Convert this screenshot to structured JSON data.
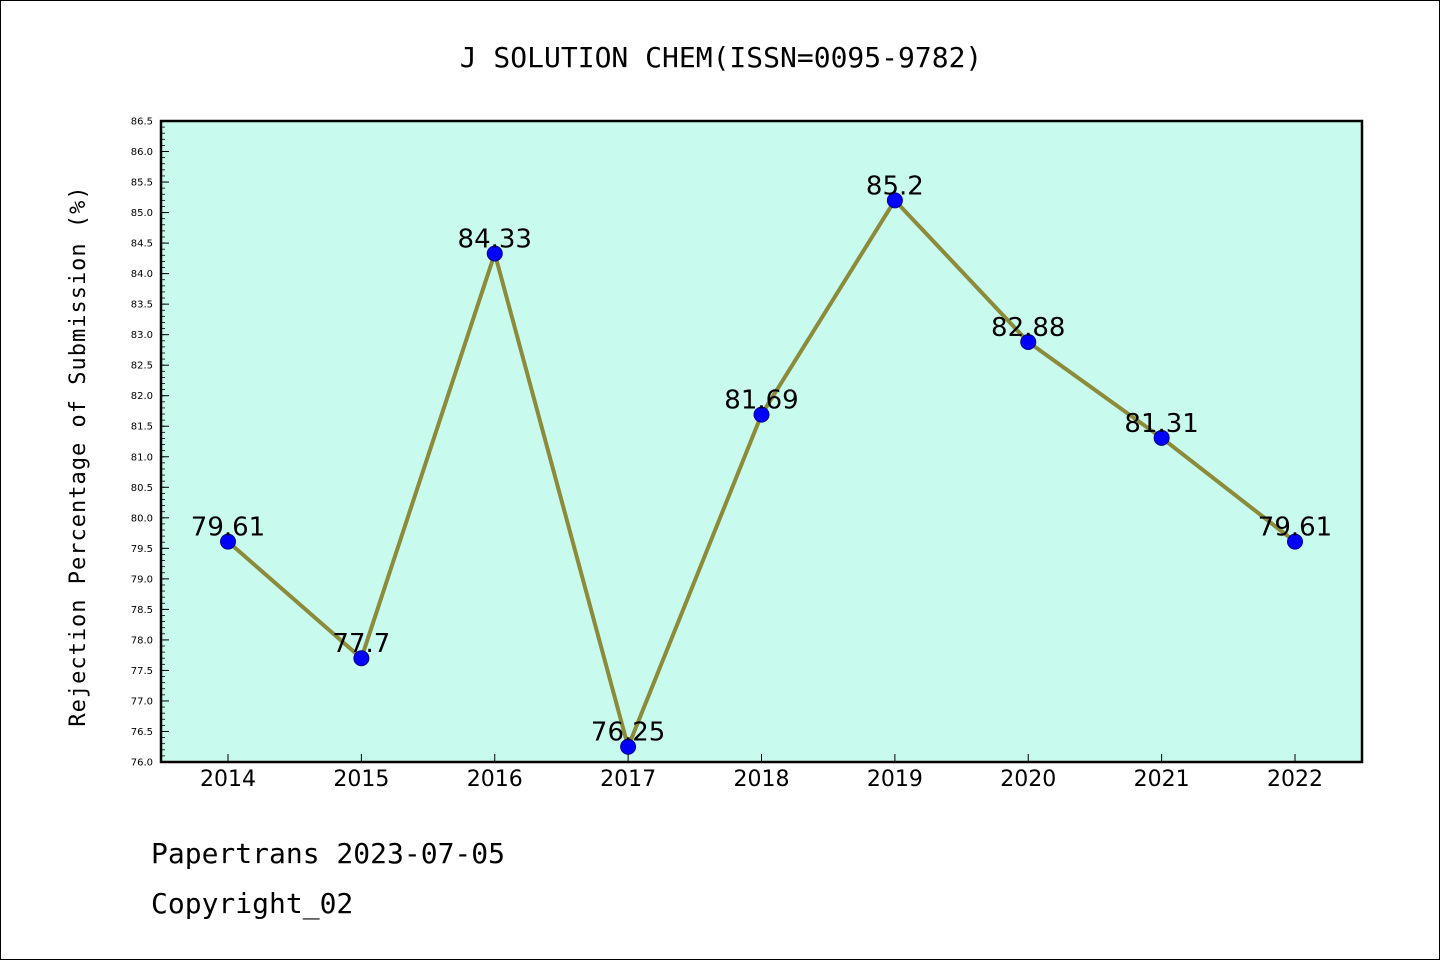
{
  "chart_data": {
    "type": "line",
    "title": "J SOLUTION CHEM(ISSN=0095-9782)",
    "xlabel": "",
    "ylabel": "Rejection Percentage of Submission (%)",
    "categories": [
      "2014",
      "2015",
      "2016",
      "2017",
      "2018",
      "2019",
      "2020",
      "2021",
      "2022"
    ],
    "series": [
      {
        "values": [
          79.61,
          77.7,
          84.33,
          76.25,
          81.69,
          85.2,
          82.88,
          81.31,
          79.61
        ]
      }
    ],
    "data_labels": [
      "79.61",
      "77.7",
      "84.33",
      "76.25",
      "81.69",
      "85.2",
      "82.88",
      "81.31",
      "79.61"
    ],
    "ylim": [
      76.0,
      86.5
    ],
    "yticks": [
      "76.0",
      "76.5",
      "77.0",
      "77.5",
      "78.0",
      "78.5",
      "79.0",
      "79.5",
      "80.0",
      "80.5",
      "81.0",
      "81.5",
      "82.0",
      "82.5",
      "83.0",
      "83.5",
      "84.0",
      "84.5",
      "85.0",
      "85.5",
      "86.0",
      "86.5"
    ],
    "grid": false,
    "legend": "none",
    "colors": {
      "plot_background": "#c8fbee",
      "line": "#8b8b3a",
      "marker": "#0000ff"
    }
  },
  "footer": {
    "line1": "Papertrans 2023-07-05",
    "line2": "Copyright_02"
  }
}
